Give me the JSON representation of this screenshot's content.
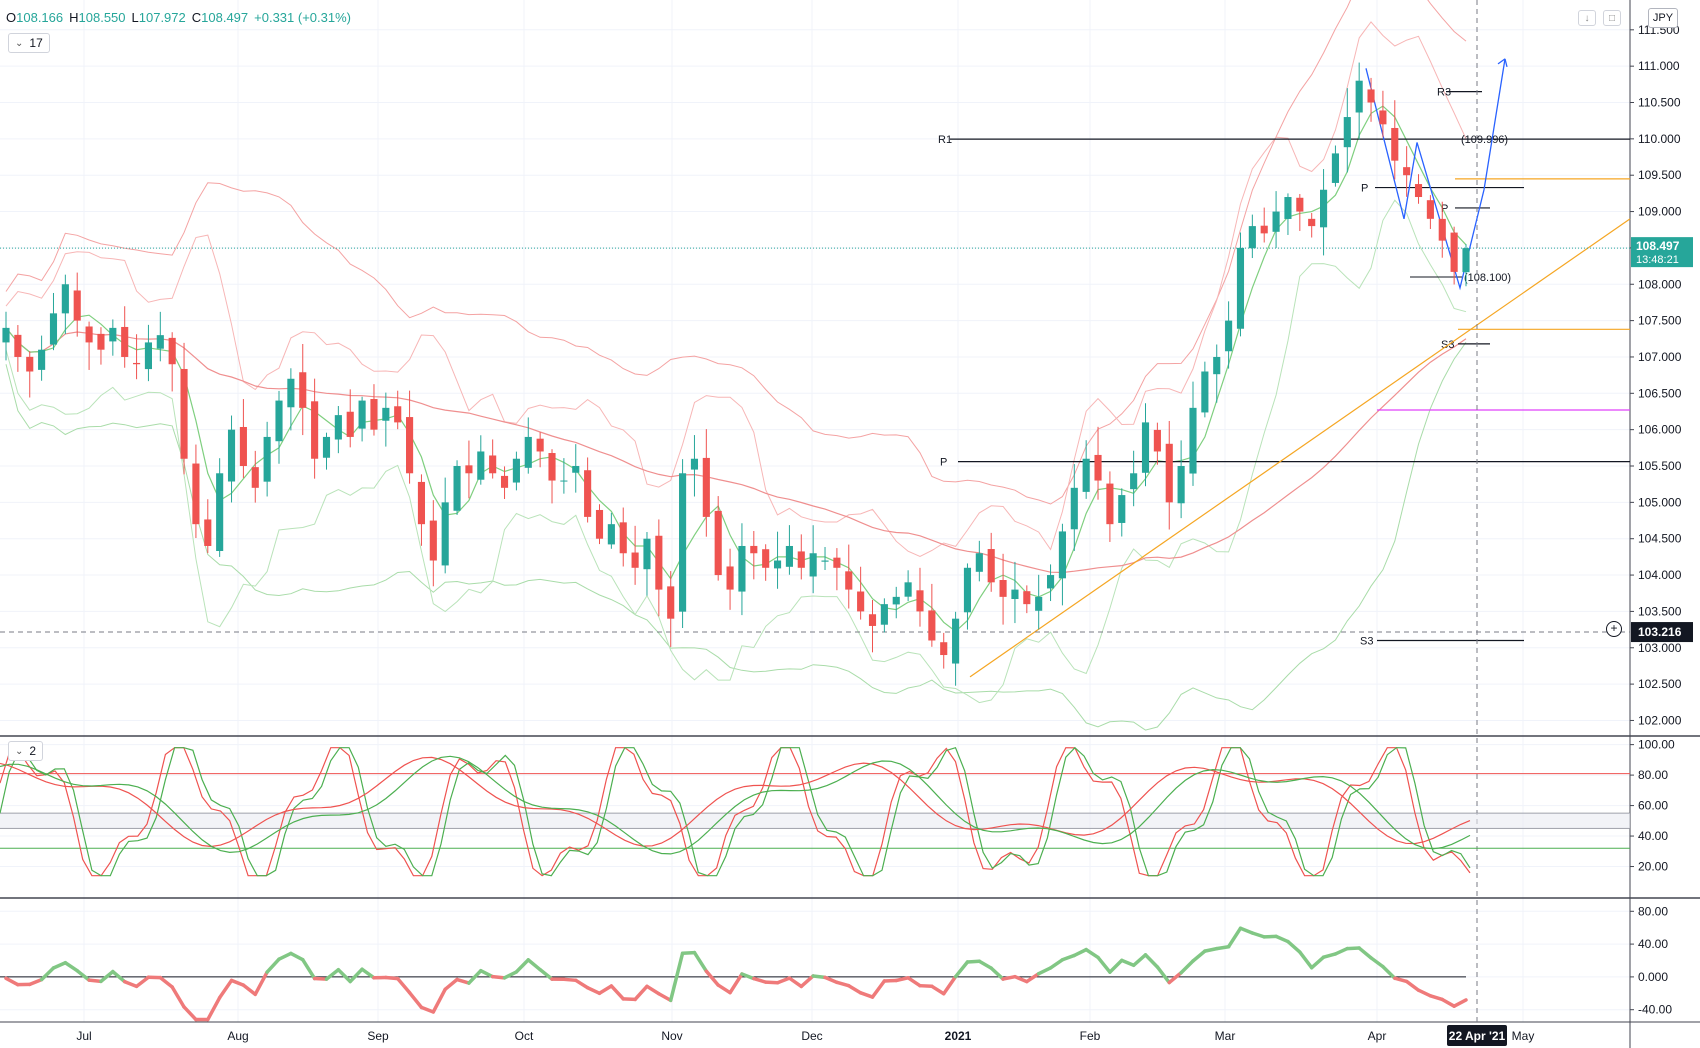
{
  "header": {
    "o_label": "O",
    "o_value": "108.166",
    "h_label": "H",
    "h_value": "108.550",
    "l_label": "L",
    "l_value": "107.972",
    "c_label": "C",
    "c_value": "108.497",
    "change": "+0.331 (+0.31%)",
    "up_color": "#26a69a",
    "pane1_collapsed_count": "17",
    "pane2_collapsed_count": "2",
    "currency": "JPY"
  },
  "price_tags": {
    "last_price": "108.497",
    "countdown": "13:48:21",
    "crosshair_price": "103.216"
  },
  "chart_data": [
    {
      "type": "candlestick",
      "title": "",
      "y_axis": {
        "ticks": [
          "111.500",
          "111.000",
          "110.500",
          "110.000",
          "109.500",
          "109.000",
          "108.500",
          "108.000",
          "107.500",
          "107.000",
          "106.500",
          "106.000",
          "105.500",
          "105.000",
          "104.500",
          "104.000",
          "103.500",
          "103.000",
          "102.500",
          "102.000"
        ],
        "range": [
          101.8,
          111.8
        ]
      },
      "x_axis": {
        "ticks": [
          "Jul",
          "Aug",
          "Sep",
          "Oct",
          "Nov",
          "Dec",
          "2021",
          "Feb",
          "Mar",
          "Apr",
          "May"
        ],
        "highlighted_label": "22 Apr '21"
      },
      "close_path": [
        107.4,
        107.0,
        106.8,
        107.1,
        107.6,
        108.0,
        107.5,
        107.2,
        107.1,
        107.4,
        107.0,
        106.9,
        107.2,
        107.3,
        106.9,
        105.6,
        104.7,
        104.4,
        105.4,
        106.0,
        105.5,
        105.2,
        105.9,
        106.4,
        106.7,
        106.3,
        105.6,
        105.9,
        106.2,
        105.9,
        106.4,
        106.0,
        106.3,
        106.1,
        105.4,
        104.7,
        104.2,
        105.0,
        105.5,
        105.4,
        105.7,
        105.4,
        105.2,
        105.6,
        105.9,
        105.7,
        105.3,
        105.3,
        105.5,
        104.8,
        104.5,
        104.7,
        104.3,
        104.1,
        104.5,
        103.8,
        103.4,
        105.4,
        105.6,
        104.8,
        104.0,
        103.8,
        104.4,
        104.3,
        104.1,
        104.2,
        104.4,
        104.1,
        104.3,
        104.2,
        104.1,
        103.8,
        103.5,
        103.3,
        103.6,
        103.7,
        103.9,
        103.5,
        103.1,
        102.9,
        103.4,
        104.1,
        104.3,
        103.9,
        103.7,
        103.8,
        103.6,
        103.7,
        104.0,
        104.6,
        105.2,
        105.6,
        105.3,
        104.7,
        105.1,
        105.4,
        106.1,
        105.7,
        105.0,
        105.5,
        106.3,
        106.8,
        107.0,
        107.5,
        108.5,
        108.8,
        108.7,
        109.0,
        109.2,
        109.0,
        108.8,
        109.3,
        109.8,
        110.3,
        110.8,
        110.5,
        110.2,
        109.7,
        109.5,
        109.2,
        108.9,
        108.6,
        108.17,
        108.5
      ],
      "series": [
        {
          "name": "",
          "color": "#26a69a"
        },
        {
          "name": "",
          "color": "#ef5350"
        }
      ],
      "annotations": [
        {
          "text": "R1",
          "y": 109.996
        },
        {
          "text": "(109.996)",
          "y": 109.996
        },
        {
          "text": "R3",
          "y": 110.65
        },
        {
          "text": "P",
          "y": 109.33
        },
        {
          "text": "P",
          "y": 109.05
        },
        {
          "text": "(108.100)",
          "y": 108.1
        },
        {
          "text": "S3",
          "y": 107.18
        },
        {
          "text": "P",
          "y": 105.56
        },
        {
          "text": "S3",
          "y": 103.1
        }
      ],
      "grid": true
    },
    {
      "type": "line",
      "title": "",
      "y_axis": {
        "ticks": [
          "100.00",
          "80.00",
          "60.00",
          "40.00",
          "20.00"
        ],
        "range": [
          0,
          105
        ]
      },
      "levels": [
        81,
        55,
        45,
        32
      ]
    },
    {
      "type": "line",
      "title": "",
      "y_axis": {
        "ticks": [
          "80.00",
          "40.00",
          "0.000",
          "-40.00"
        ],
        "range": [
          -55,
          95
        ]
      },
      "zero_line": 0
    }
  ]
}
